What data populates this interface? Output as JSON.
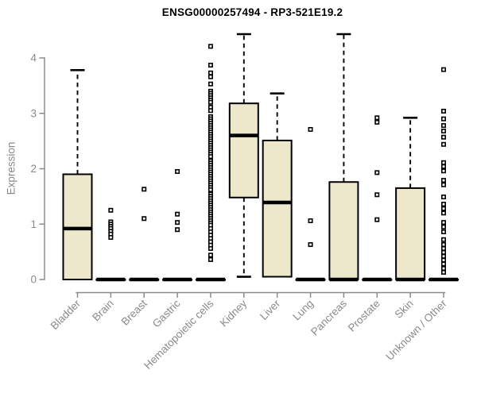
{
  "header": {
    "title": "ENSG00000257494 - RP3-521E19.2"
  },
  "colors": {
    "background": "#ffffff",
    "box_fill": "#ede7cb",
    "box_border": "#000000",
    "median": "#000000",
    "whisker": "#000000",
    "outlier_fill": "#ffffff",
    "outlier_border": "#000000",
    "axis": "#8a8a8a",
    "axis_text": "#8a8a8a",
    "title_text": "#000000"
  },
  "chart_data": {
    "type": "boxplot",
    "title": "ENSG00000257494 - RP3-521E19.2",
    "xlabel": "",
    "ylabel": "Expression",
    "ylim": [
      0,
      4.47
    ],
    "yticks": [
      0,
      1,
      2,
      3,
      4
    ],
    "grid": false,
    "legend": "none",
    "categories": [
      "Bladder",
      "Brain",
      "Breast",
      "Gastric",
      "Hematopoietic cells",
      "Kidney",
      "Liver",
      "Lung",
      "Pancreas",
      "Prostate",
      "Skin",
      "Unknown / Other"
    ],
    "series": [
      {
        "category": "Bladder",
        "whisker_low": 0,
        "q1": 0,
        "median": 0.92,
        "q3": 1.9,
        "whisker_high": 3.78,
        "outliers": []
      },
      {
        "category": "Brain",
        "whisker_low": 0,
        "q1": 0,
        "median": 0,
        "q3": 0,
        "whisker_high": 0,
        "outliers": [
          1.25,
          1.04,
          1.0,
          0.96,
          0.92,
          0.87,
          0.82,
          0.76
        ]
      },
      {
        "category": "Breast",
        "whisker_low": 0,
        "q1": 0,
        "median": 0,
        "q3": 0,
        "whisker_high": 0,
        "outliers": [
          1.63,
          1.1
        ]
      },
      {
        "category": "Gastric",
        "whisker_low": 0,
        "q1": 0,
        "median": 0,
        "q3": 0,
        "whisker_high": 0,
        "outliers": [
          1.95,
          1.18,
          1.03,
          0.9
        ]
      },
      {
        "category": "Hematopoietic cells",
        "whisker_low": 0,
        "q1": 0,
        "median": 0,
        "q3": 0,
        "whisker_high": 0,
        "outliers": [
          4.21,
          3.87,
          3.73,
          3.66,
          3.53,
          3.4,
          3.36,
          3.32,
          3.28,
          3.24,
          3.2,
          3.11,
          3.05,
          2.94,
          2.9,
          2.86,
          2.82,
          2.78,
          2.74,
          2.7,
          2.66,
          2.62,
          2.58,
          2.54,
          2.5,
          2.46,
          2.42,
          2.38,
          2.34,
          2.3,
          2.26,
          2.22,
          2.14,
          2.1,
          2.06,
          2.02,
          1.98,
          1.94,
          1.9,
          1.86,
          1.82,
          1.78,
          1.74,
          1.7,
          1.66,
          1.62,
          1.54,
          1.5,
          1.46,
          1.42,
          1.38,
          1.34,
          1.3,
          1.26,
          1.22,
          1.18,
          1.14,
          1.1,
          1.06,
          1.02,
          0.98,
          0.92,
          0.86,
          0.8,
          0.74,
          0.68,
          0.62,
          0.56,
          0.44,
          0.36
        ]
      },
      {
        "category": "Kidney",
        "whisker_low": 0.05,
        "q1": 1.48,
        "median": 2.6,
        "q3": 3.18,
        "whisker_high": 4.43,
        "outliers": []
      },
      {
        "category": "Liver",
        "whisker_low": 0.05,
        "q1": 0.05,
        "median": 1.39,
        "q3": 2.51,
        "whisker_high": 3.36,
        "outliers": []
      },
      {
        "category": "Lung",
        "whisker_low": 0,
        "q1": 0,
        "median": 0,
        "q3": 0,
        "whisker_high": 0,
        "outliers": [
          2.71,
          1.06,
          0.63
        ]
      },
      {
        "category": "Pancreas",
        "whisker_low": 0,
        "q1": 0,
        "median": 0,
        "q3": 1.76,
        "whisker_high": 4.43,
        "outliers": []
      },
      {
        "category": "Prostate",
        "whisker_low": 0,
        "q1": 0,
        "median": 0,
        "q3": 0,
        "whisker_high": 0,
        "outliers": [
          2.92,
          2.84,
          1.93,
          1.53,
          1.08
        ]
      },
      {
        "category": "Skin",
        "whisker_low": 0,
        "q1": 0,
        "median": 0,
        "q3": 1.65,
        "whisker_high": 2.92,
        "outliers": []
      },
      {
        "category": "Unknown / Other",
        "whisker_low": 0,
        "q1": 0,
        "median": 0,
        "q3": 0,
        "whisker_high": 0,
        "outliers": [
          3.79,
          3.04,
          2.9,
          2.78,
          2.68,
          2.57,
          2.44,
          2.11,
          2.04,
          1.96,
          1.79,
          1.71,
          1.49,
          1.36,
          1.28,
          1.2,
          1.03,
          0.95,
          0.86,
          0.72,
          0.63,
          0.56,
          0.49,
          0.42,
          0.35,
          0.28,
          0.2,
          0.13
        ]
      }
    ]
  }
}
